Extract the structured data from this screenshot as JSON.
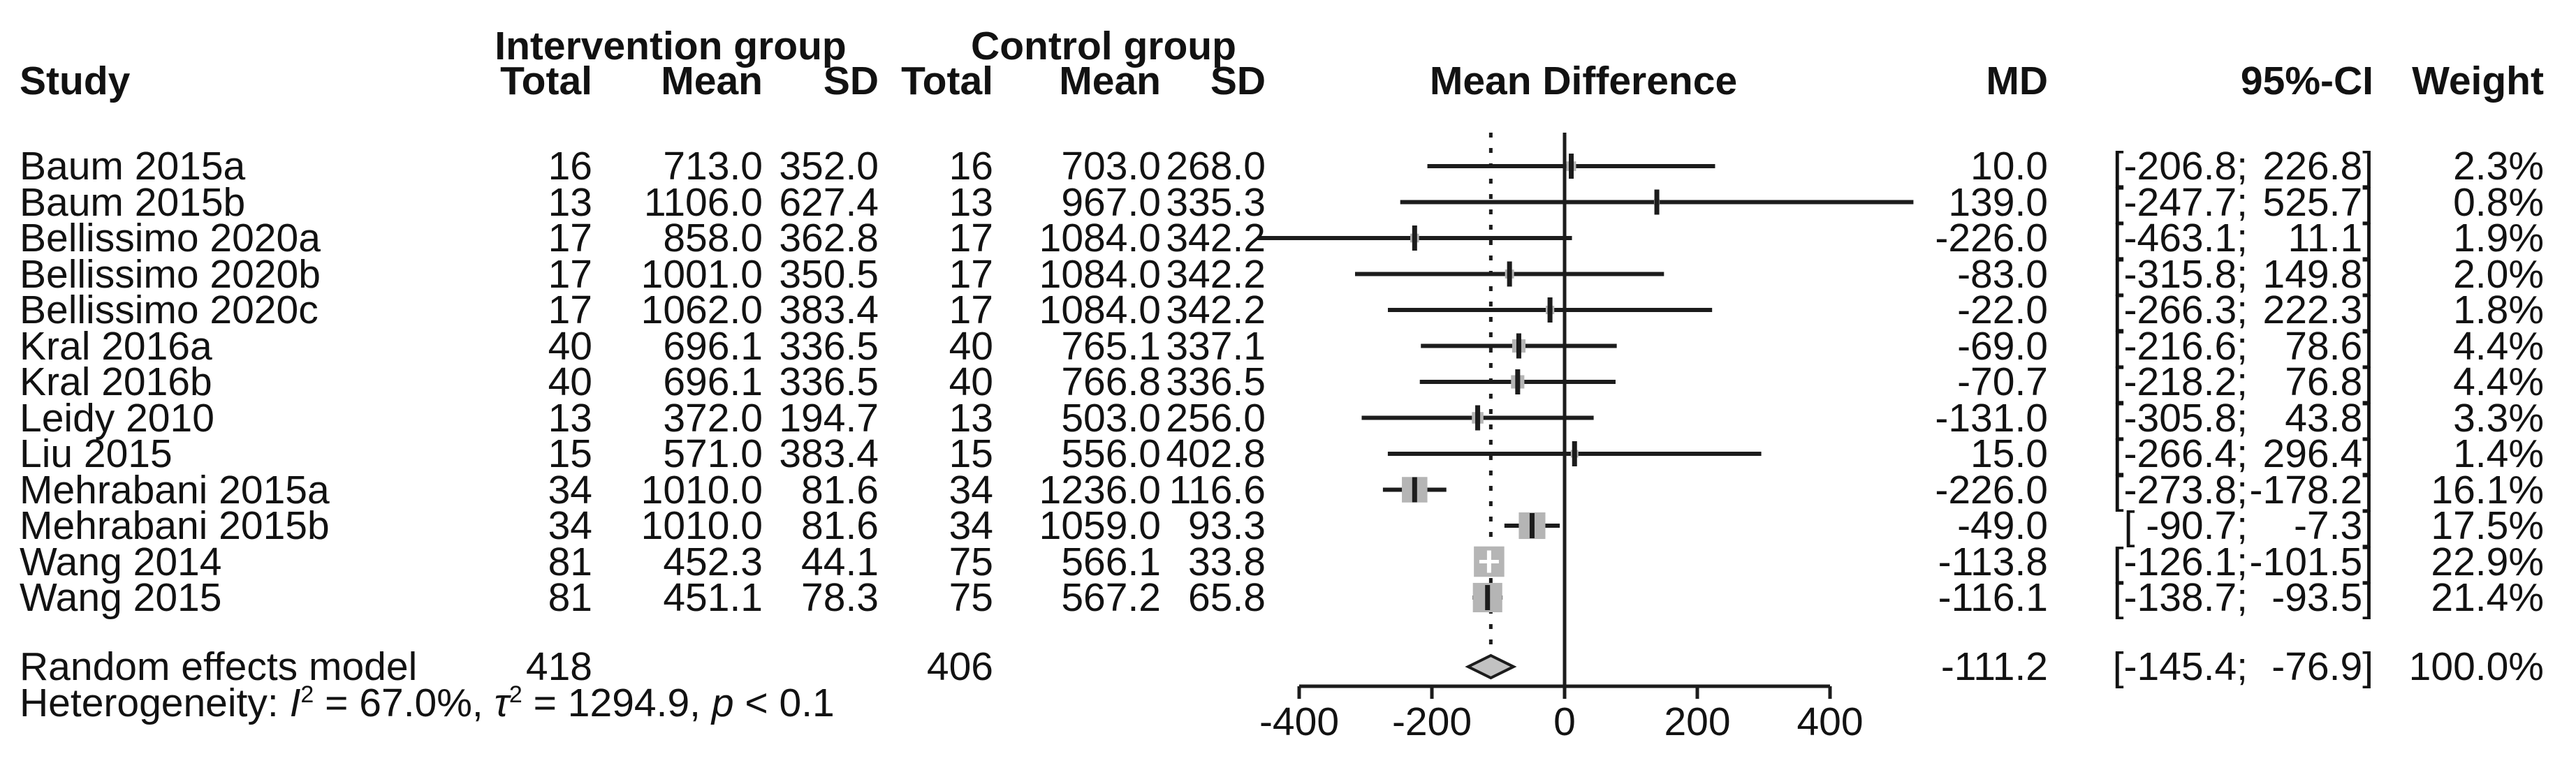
{
  "header": {
    "study": "Study",
    "intervention_group": "Intervention group",
    "control_group": "Control group",
    "total": "Total",
    "mean": "Mean",
    "sd": "SD",
    "mean_difference": "Mean Difference",
    "md": "MD",
    "ci": "95%-CI",
    "weight": "Weight"
  },
  "summary": {
    "label": "Random effects model",
    "intervention_total": "418",
    "control_total": "406",
    "md": "-111.2",
    "ci_low": "[-145.4;",
    "ci_high": "-76.9]",
    "weight": "100.0%"
  },
  "heterogeneity": {
    "prefix": "Heterogeneity: ",
    "i_sym": "I",
    "sup": "2",
    "i_rest": " = 67.0%, ",
    "tau_sym": "τ",
    "tau_rest": " = 1294.9, ",
    "p_sym": "p",
    "p_rest": " < 0.1"
  },
  "axis": {
    "tick_labels": [
      "-400",
      "-200",
      "0",
      "200",
      "400"
    ],
    "tick_values": [
      -400,
      -200,
      0,
      200,
      400
    ]
  },
  "colors": {
    "text": "#121212",
    "line": "#1c1c1c",
    "square": "#b5b5b5",
    "diamond_fill": "#c2c2c2",
    "diamond_stroke": "#1c1c1c",
    "white_marker": "#ffffff"
  },
  "chart_data": {
    "type": "forest",
    "title": "Mean Difference",
    "x_axis": {
      "ticks": [
        -400,
        -200,
        0,
        200,
        400
      ],
      "zero_line": 0,
      "dotted_line_at": -111.2
    },
    "studies": [
      {
        "name": "Baum 2015a",
        "int_total": "16",
        "int_mean": "713.0",
        "int_sd": "352.0",
        "ctrl_total": "16",
        "ctrl_mean": "703.0",
        "ctrl_sd": "268.0",
        "md": 10.0,
        "lower": -206.8,
        "upper": 226.8,
        "weight": 2.3,
        "md_text": "10.0",
        "ci_low_text": "[-206.8;",
        "ci_high_text": "226.8]",
        "weight_text": "2.3%"
      },
      {
        "name": "Baum 2015b",
        "int_total": "13",
        "int_mean": "1106.0",
        "int_sd": "627.4",
        "ctrl_total": "13",
        "ctrl_mean": "967.0",
        "ctrl_sd": "335.3",
        "md": 139.0,
        "lower": -247.7,
        "upper": 525.7,
        "weight": 0.8,
        "md_text": "139.0",
        "ci_low_text": "[-247.7;",
        "ci_high_text": "525.7]",
        "weight_text": "0.8%"
      },
      {
        "name": "Bellissimo 2020a",
        "int_total": "17",
        "int_mean": "858.0",
        "int_sd": "362.8",
        "ctrl_total": "17",
        "ctrl_mean": "1084.0",
        "ctrl_sd": "342.2",
        "md": -226.0,
        "lower": -463.1,
        "upper": 11.1,
        "weight": 1.9,
        "md_text": "-226.0",
        "ci_low_text": "[-463.1;",
        "ci_high_text": "11.1]",
        "weight_text": "1.9%"
      },
      {
        "name": "Bellissimo 2020b",
        "int_total": "17",
        "int_mean": "1001.0",
        "int_sd": "350.5",
        "ctrl_total": "17",
        "ctrl_mean": "1084.0",
        "ctrl_sd": "342.2",
        "md": -83.0,
        "lower": -315.8,
        "upper": 149.8,
        "weight": 2.0,
        "md_text": "-83.0",
        "ci_low_text": "[-315.8;",
        "ci_high_text": "149.8]",
        "weight_text": "2.0%"
      },
      {
        "name": "Bellissimo 2020c",
        "int_total": "17",
        "int_mean": "1062.0",
        "int_sd": "383.4",
        "ctrl_total": "17",
        "ctrl_mean": "1084.0",
        "ctrl_sd": "342.2",
        "md": -22.0,
        "lower": -266.3,
        "upper": 222.3,
        "weight": 1.8,
        "md_text": "-22.0",
        "ci_low_text": "[-266.3;",
        "ci_high_text": "222.3]",
        "weight_text": "1.8%"
      },
      {
        "name": "Kral 2016a",
        "int_total": "40",
        "int_mean": "696.1",
        "int_sd": "336.5",
        "ctrl_total": "40",
        "ctrl_mean": "765.1",
        "ctrl_sd": "337.1",
        "md": -69.0,
        "lower": -216.6,
        "upper": 78.6,
        "weight": 4.4,
        "md_text": "-69.0",
        "ci_low_text": "[-216.6;",
        "ci_high_text": "78.6]",
        "weight_text": "4.4%"
      },
      {
        "name": "Kral 2016b",
        "int_total": "40",
        "int_mean": "696.1",
        "int_sd": "336.5",
        "ctrl_total": "40",
        "ctrl_mean": "766.8",
        "ctrl_sd": "336.5",
        "md": -70.7,
        "lower": -218.2,
        "upper": 76.8,
        "weight": 4.4,
        "md_text": "-70.7",
        "ci_low_text": "[-218.2;",
        "ci_high_text": "76.8]",
        "weight_text": "4.4%"
      },
      {
        "name": "Leidy 2010",
        "int_total": "13",
        "int_mean": "372.0",
        "int_sd": "194.7",
        "ctrl_total": "13",
        "ctrl_mean": "503.0",
        "ctrl_sd": "256.0",
        "md": -131.0,
        "lower": -305.8,
        "upper": 43.8,
        "weight": 3.3,
        "md_text": "-131.0",
        "ci_low_text": "[-305.8;",
        "ci_high_text": "43.8]",
        "weight_text": "3.3%"
      },
      {
        "name": "Liu 2015",
        "int_total": "15",
        "int_mean": "571.0",
        "int_sd": "383.4",
        "ctrl_total": "15",
        "ctrl_mean": "556.0",
        "ctrl_sd": "402.8",
        "md": 15.0,
        "lower": -266.4,
        "upper": 296.4,
        "weight": 1.4,
        "md_text": "15.0",
        "ci_low_text": "[-266.4;",
        "ci_high_text": "296.4]",
        "weight_text": "1.4%"
      },
      {
        "name": "Mehrabani 2015a",
        "int_total": "34",
        "int_mean": "1010.0",
        "int_sd": "81.6",
        "ctrl_total": "34",
        "ctrl_mean": "1236.0",
        "ctrl_sd": "116.6",
        "md": -226.0,
        "lower": -273.8,
        "upper": -178.2,
        "weight": 16.1,
        "md_text": "-226.0",
        "ci_low_text": "[-273.8;",
        "ci_high_text": "-178.2]",
        "weight_text": "16.1%"
      },
      {
        "name": "Mehrabani 2015b",
        "int_total": "34",
        "int_mean": "1010.0",
        "int_sd": "81.6",
        "ctrl_total": "34",
        "ctrl_mean": "1059.0",
        "ctrl_sd": "93.3",
        "md": -49.0,
        "lower": -90.7,
        "upper": -7.3,
        "weight": 17.5,
        "md_text": "-49.0",
        "ci_low_text": "[ -90.7;",
        "ci_high_text": "-7.3]",
        "weight_text": "17.5%"
      },
      {
        "name": "Wang 2014",
        "int_total": "81",
        "int_mean": "452.3",
        "int_sd": "44.1",
        "ctrl_total": "75",
        "ctrl_mean": "566.1",
        "ctrl_sd": "33.8",
        "md": -113.8,
        "lower": -126.1,
        "upper": -101.5,
        "weight": 22.9,
        "md_text": "-113.8",
        "ci_low_text": "[-126.1;",
        "ci_high_text": "-101.5]",
        "weight_text": "22.9%"
      },
      {
        "name": "Wang 2015",
        "int_total": "81",
        "int_mean": "451.1",
        "int_sd": "78.3",
        "ctrl_total": "75",
        "ctrl_mean": "567.2",
        "ctrl_sd": "65.8",
        "md": -116.1,
        "lower": -138.7,
        "upper": -93.5,
        "weight": 21.4,
        "md_text": "-116.1",
        "ci_low_text": "[-138.7;",
        "ci_high_text": "-93.5]",
        "weight_text": "21.4%"
      }
    ],
    "summary": {
      "name": "Random effects model",
      "md": -111.2,
      "lower": -145.4,
      "upper": -76.9,
      "weight": 100.0
    }
  }
}
